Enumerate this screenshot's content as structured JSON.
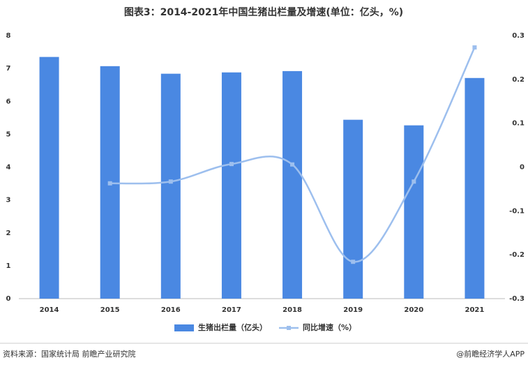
{
  "chart_data": {
    "type": "bar",
    "title": "图表3：2014-2021年中国生猪出栏量及增速(单位：亿头，%)",
    "categories": [
      "2014",
      "2015",
      "2016",
      "2017",
      "2018",
      "2019",
      "2020",
      "2021"
    ],
    "series": [
      {
        "name": "生猪出栏量（亿头）",
        "color": "#4a88e2",
        "values": [
          7.35,
          7.07,
          6.84,
          6.88,
          6.92,
          5.44,
          5.27,
          6.71
        ]
      },
      {
        "name": "同比增速（%）",
        "color": "#9dbfee",
        "type": "line",
        "axis": "y2",
        "values": [
          null,
          -0.037,
          -0.033,
          0.007,
          0.006,
          -0.216,
          -0.033,
          0.273
        ]
      }
    ],
    "ylim": [
      0,
      8
    ],
    "yticks": [
      0,
      1,
      2,
      3,
      4,
      5,
      6,
      7,
      8
    ],
    "y2lim": [
      -0.3,
      0.3
    ],
    "y2ticks": [
      -0.3,
      -0.2,
      -0.1,
      0,
      0.1,
      0.2,
      0.3
    ],
    "legend": "bottom",
    "source": "资料来源：国家统计局 前瞻产业研究院",
    "credit": "@前瞻经济学人APP"
  }
}
